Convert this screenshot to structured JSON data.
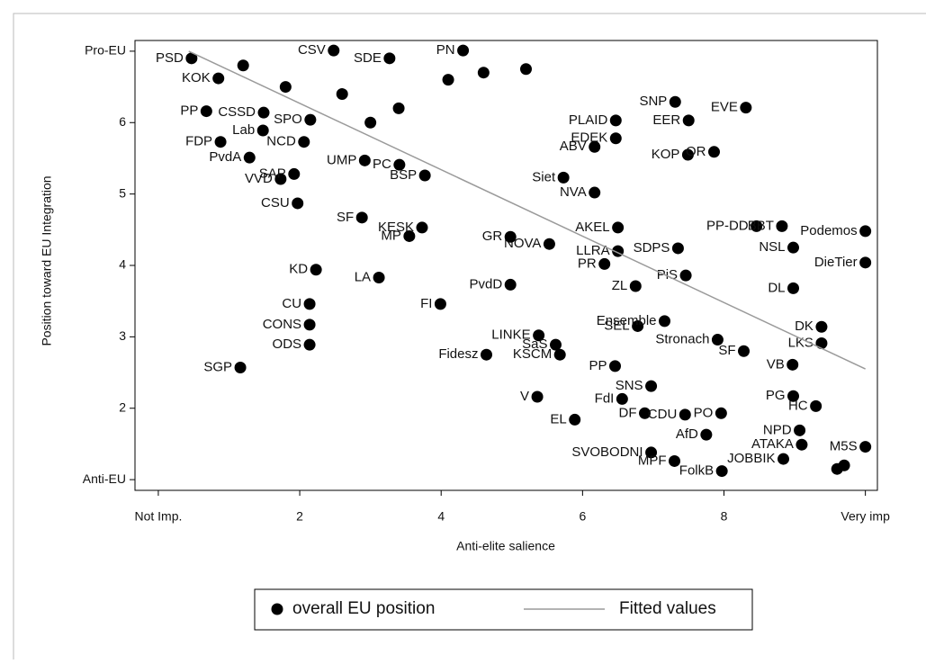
{
  "chart_data": {
    "type": "scatter",
    "x_label": "Anti-elite salience",
    "y_label": "Position toward EU Integration",
    "xlim": [
      -0.33,
      10.17
    ],
    "ylim": [
      0.85,
      7.15
    ],
    "xticks": [
      {
        "value": 0,
        "label": "Not Imp."
      },
      2,
      4,
      6,
      8,
      {
        "value": 10,
        "label": "Very imp"
      }
    ],
    "yticks": [
      {
        "value": 1,
        "label": "Anti-EU"
      },
      2,
      3,
      4,
      5,
      6,
      {
        "value": 7,
        "label": "Pro-EU"
      }
    ],
    "series": [
      {
        "name": "overall EU position",
        "color": "#000000",
        "labels": [
          "SGP",
          "ODS",
          "CONS",
          "CU",
          "KD",
          "LA",
          "FI",
          "PvdD",
          "CSU",
          "SF",
          "KESK",
          "MP",
          "Fidesz",
          "KSCM",
          "LINKE",
          "SaS",
          "V",
          "EL",
          "FdI",
          "SNS",
          "DF",
          "CDU",
          "PO",
          "AfD",
          "SVOBODNI",
          "MPF",
          "FolkB",
          "JOBBIK",
          "PR",
          "NOVA",
          "GR",
          "LLRA",
          "SDPS",
          "PP-DD",
          "BBT",
          "NSL",
          "Podemos",
          "DieTier",
          "DL",
          "ZL",
          "PiS",
          "SNP",
          "EER",
          "EVE",
          "PLAID",
          "EDEK",
          "ABV",
          "KOP",
          "OR",
          "Siet",
          "NVA",
          "AKEL",
          "PN",
          "PSD",
          "CSV",
          "KOK",
          "PP",
          "FDP",
          "PvdA",
          "CSSD",
          "Lab",
          "VVD",
          "SAP",
          "SPO",
          "NCD",
          "UMP",
          "PC",
          "BSP",
          "SF",
          "VB",
          "LKS",
          "DK",
          "PG",
          "HC",
          "NPD",
          "ATAKA",
          "M5S",
          "PP",
          "SEL",
          "Ensemble",
          "Stronach",
          "SDE",
          null,
          null,
          null,
          null,
          null,
          null,
          null,
          null,
          null,
          null
        ],
        "x": [
          1.16,
          2.14,
          2.14,
          2.14,
          2.23,
          3.12,
          3.99,
          4.98,
          1.97,
          2.88,
          3.73,
          3.55,
          4.64,
          5.68,
          5.38,
          5.62,
          5.36,
          5.89,
          6.56,
          6.97,
          6.88,
          7.45,
          7.96,
          7.75,
          6.97,
          7.3,
          7.97,
          8.84,
          6.31,
          5.53,
          4.98,
          6.5,
          7.35,
          8.46,
          8.82,
          8.98,
          10,
          10,
          8.98,
          6.75,
          7.46,
          7.31,
          7.5,
          8.31,
          6.47,
          6.47,
          6.17,
          7.49,
          7.86,
          5.73,
          6.17,
          6.5,
          4.31,
          0.47,
          2.48,
          0.85,
          0.68,
          0.88,
          1.29,
          1.49,
          1.48,
          1.73,
          1.92,
          2.15,
          2.06,
          2.92,
          3.41,
          3.77,
          8.28,
          8.97,
          9.38,
          9.38,
          8.98,
          9.3,
          9.07,
          9.1,
          10,
          6.46,
          6.78,
          7.16,
          7.91,
          3.27,
          1.8,
          2.6,
          3.4,
          4.1,
          4.6,
          5.2,
          1.2,
          3.0,
          9.6,
          9.7
        ],
        "values": [
          2.57,
          2.89,
          3.17,
          3.46,
          3.94,
          3.83,
          3.46,
          3.73,
          4.87,
          4.67,
          4.53,
          4.41,
          2.75,
          2.75,
          3.02,
          2.89,
          2.16,
          1.84,
          2.13,
          2.31,
          1.93,
          1.91,
          1.93,
          1.63,
          1.38,
          1.26,
          1.12,
          1.29,
          4.02,
          4.3,
          4.4,
          4.2,
          4.24,
          4.55,
          4.55,
          4.25,
          4.48,
          4.04,
          3.68,
          3.71,
          3.86,
          6.29,
          6.03,
          6.21,
          6.03,
          5.78,
          5.66,
          5.55,
          5.59,
          5.23,
          5.02,
          4.53,
          7.01,
          6.9,
          7.01,
          6.62,
          6.16,
          5.73,
          5.51,
          6.14,
          5.89,
          5.21,
          5.28,
          6.04,
          5.73,
          5.47,
          5.41,
          5.26,
          2.8,
          2.61,
          2.91,
          3.14,
          2.17,
          2.03,
          1.69,
          1.49,
          1.46,
          2.59,
          3.15,
          3.22,
          2.96,
          6.9,
          6.5,
          6.4,
          6.2,
          6.6,
          6.7,
          6.75,
          6.8,
          6.0,
          1.15,
          1.2
        ]
      },
      {
        "name": "Fitted values",
        "color": "#9a9a9a",
        "x": [
          0.43,
          10
        ],
        "values": [
          7.0,
          2.55
        ]
      }
    ]
  }
}
